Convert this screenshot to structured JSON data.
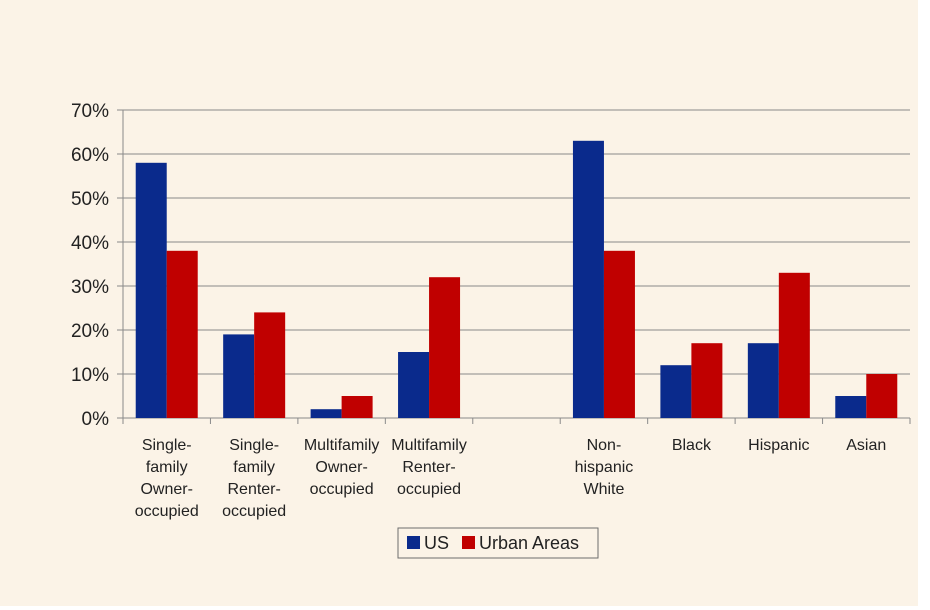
{
  "chart_data": {
    "type": "bar",
    "categories": [
      "Single-\nfamily\nOwner-\noccupied",
      "Single-\nfamily\nRenter-\noccupied",
      "Multifamily\nOwner-\noccupied",
      "Multifamily\nRenter-\noccupied",
      "",
      "Non-\nhispanic\nWhite",
      "Black",
      "Hispanic",
      "Asian"
    ],
    "series": [
      {
        "name": "US",
        "color": "#0a2a8c",
        "values": [
          58,
          19,
          2,
          15,
          null,
          63,
          12,
          17,
          5
        ]
      },
      {
        "name": "Urban Areas",
        "color": "#c00000",
        "values": [
          38,
          24,
          5,
          32,
          null,
          38,
          17,
          33,
          10
        ]
      }
    ],
    "yticks": [
      "0%",
      "10%",
      "20%",
      "30%",
      "40%",
      "50%",
      "60%",
      "70%"
    ],
    "ylim": [
      0,
      70
    ],
    "grid": true,
    "legend_position": "bottom"
  }
}
